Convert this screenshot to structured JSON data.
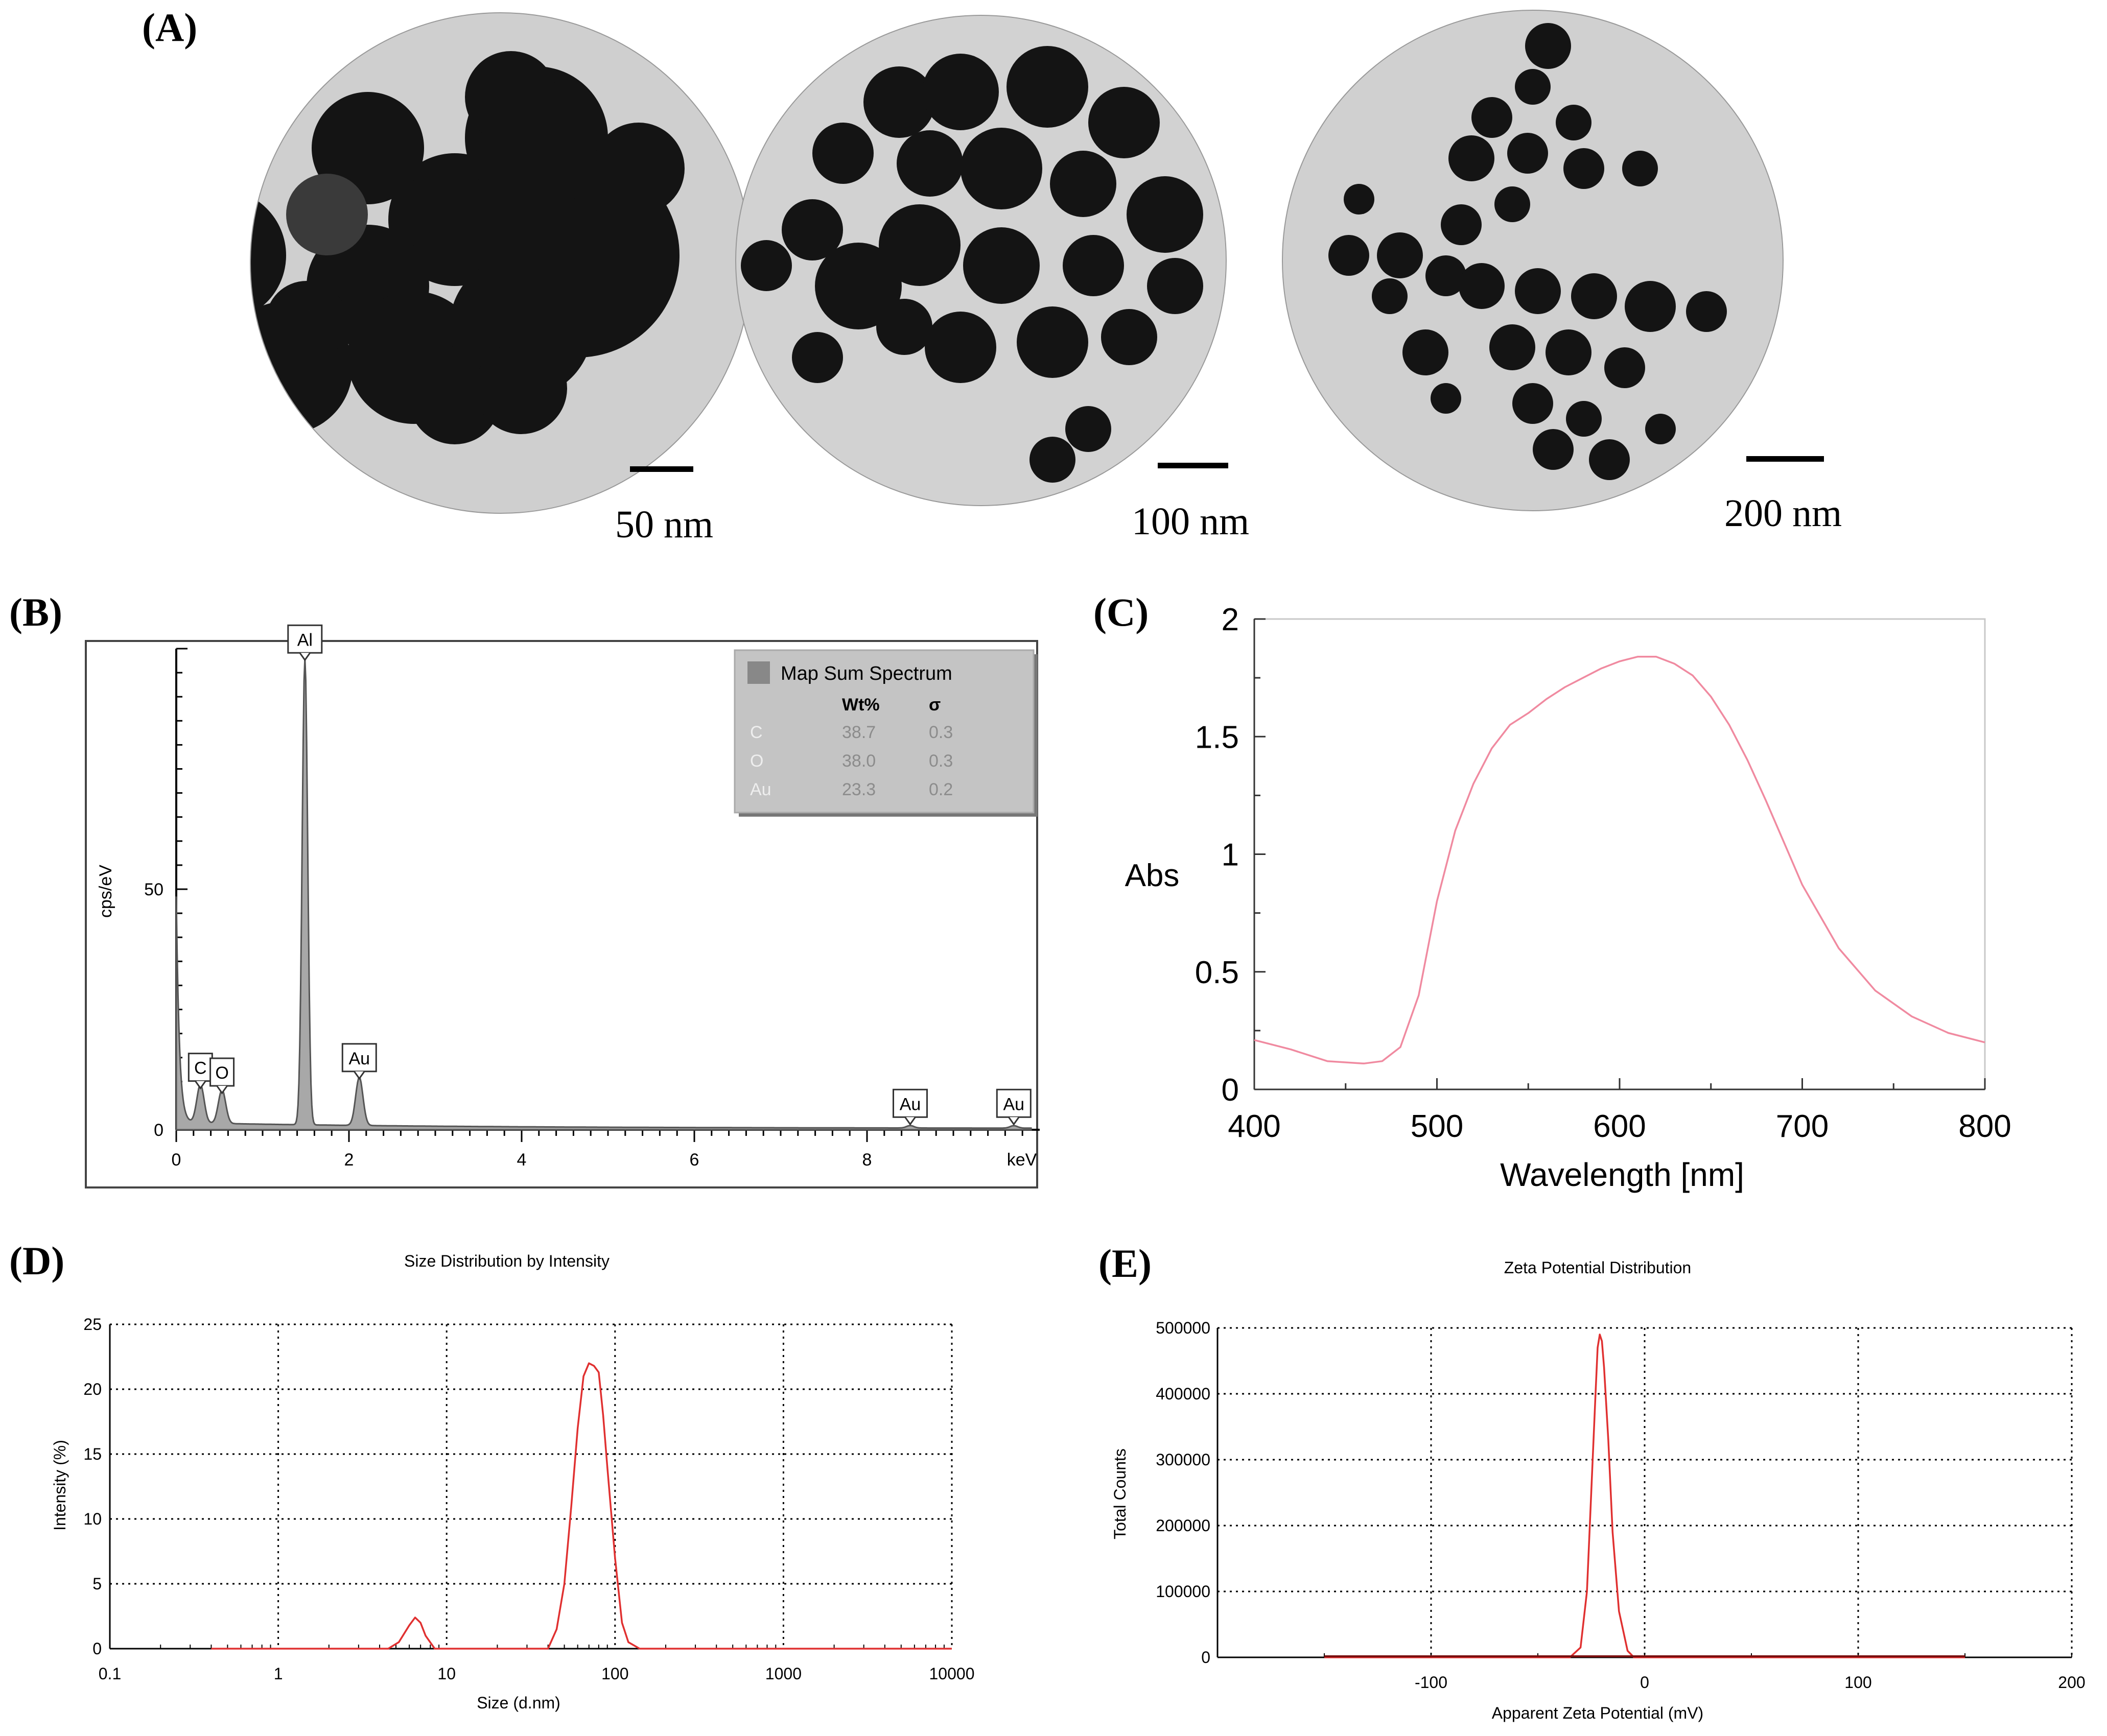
{
  "panel_labels": {
    "a": "(A)",
    "b": "(B)",
    "c": "(C)",
    "d": "(D)",
    "e": "(E)"
  },
  "tem_images": [
    {
      "scale": "50 nm",
      "particle_density": "large aggregates"
    },
    {
      "scale": "100 nm",
      "particle_density": "dense cluster"
    },
    {
      "scale": "200 nm",
      "particle_density": "sparse branching cluster"
    }
  ],
  "chart_data": [
    {
      "id": "B",
      "type": "area",
      "xlabel": "keV",
      "ylabel": "cps/eV",
      "xlim": [
        0,
        10
      ],
      "ylim": [
        0,
        100
      ],
      "x_ticks": [
        "0",
        "2",
        "4",
        "6",
        "8"
      ],
      "y_ticks": [
        "0",
        "50"
      ],
      "peaks": [
        {
          "label": "C",
          "x": 0.28,
          "y": 8
        },
        {
          "label": "O",
          "x": 0.53,
          "y": 7
        },
        {
          "label": "Al",
          "x": 1.49,
          "y": 97
        },
        {
          "label": "Au",
          "x": 2.12,
          "y": 10
        },
        {
          "label": "Au",
          "x": 8.5,
          "y": 0.5
        },
        {
          "label": "Au",
          "x": 9.7,
          "y": 0.5
        }
      ],
      "legend": {
        "title": "Map Sum Spectrum",
        "col_wt": "Wt%",
        "col_sigma": "σ",
        "rows": [
          {
            "el": "C",
            "wt": "38.7",
            "sigma": "0.3"
          },
          {
            "el": "O",
            "wt": "38.0",
            "sigma": "0.3"
          },
          {
            "el": "Au",
            "wt": "23.3",
            "sigma": "0.2"
          }
        ]
      },
      "colors": {
        "fill": "#a8a8a8",
        "line": "#555555"
      }
    },
    {
      "id": "C",
      "type": "line",
      "xlabel": "Wavelength [nm]",
      "ylabel": "Abs",
      "xlim": [
        400,
        800
      ],
      "ylim": [
        0,
        2
      ],
      "x_ticks": [
        "400",
        "500",
        "600",
        "700",
        "800"
      ],
      "y_ticks": [
        "0",
        "0.5",
        "1",
        "1.5",
        "2"
      ],
      "x": [
        400,
        420,
        440,
        460,
        470,
        480,
        490,
        500,
        510,
        520,
        530,
        540,
        550,
        560,
        570,
        580,
        590,
        600,
        610,
        620,
        630,
        640,
        650,
        660,
        670,
        680,
        690,
        700,
        720,
        740,
        760,
        780,
        800
      ],
      "y": [
        0.21,
        0.17,
        0.12,
        0.11,
        0.12,
        0.18,
        0.4,
        0.8,
        1.1,
        1.3,
        1.45,
        1.55,
        1.6,
        1.66,
        1.71,
        1.75,
        1.79,
        1.82,
        1.84,
        1.84,
        1.81,
        1.76,
        1.67,
        1.55,
        1.4,
        1.23,
        1.05,
        0.87,
        0.6,
        0.42,
        0.31,
        0.24,
        0.2
      ],
      "colors": {
        "line": "#f08aa0"
      }
    },
    {
      "id": "D",
      "type": "line",
      "title": "Size Distribution by Intensity",
      "xlabel": "Size (d.nm)",
      "ylabel": "Intensity (%)",
      "xscale": "log",
      "xlim": [
        0.1,
        10000
      ],
      "ylim": [
        0,
        25
      ],
      "x_ticks": [
        "0.1",
        "1",
        "10",
        "100",
        "1000",
        "10000"
      ],
      "y_ticks": [
        "0",
        "5",
        "10",
        "15",
        "20",
        "25"
      ],
      "x": [
        0.4,
        4.5,
        5.2,
        6.0,
        6.5,
        7.0,
        7.5,
        8.5,
        10,
        40,
        45,
        50,
        55,
        60,
        65,
        70,
        75,
        80,
        85,
        90,
        100,
        110,
        120,
        140,
        10000
      ],
      "y": [
        0,
        0,
        0.5,
        1.8,
        2.4,
        2.0,
        1.0,
        0,
        0,
        0,
        1.5,
        5,
        11,
        17,
        21,
        22,
        21.8,
        21.3,
        18,
        14,
        7,
        2,
        0.5,
        0,
        0
      ],
      "grid": true,
      "colors": {
        "line": "#e03030"
      }
    },
    {
      "id": "E",
      "type": "line",
      "title": "Zeta Potential Distribution",
      "xlabel": "Apparent Zeta Potential (mV)",
      "ylabel": "Total Counts",
      "xlim": [
        -200,
        200
      ],
      "ylim": [
        0,
        500000
      ],
      "x_ticks": [
        "-100",
        "0",
        "100",
        "200"
      ],
      "y_ticks": [
        "0",
        "100000",
        "200000",
        "300000",
        "400000",
        "500000"
      ],
      "x": [
        -150,
        -35,
        -30,
        -27,
        -25,
        -23,
        -22,
        -21,
        -20,
        -19,
        -17,
        -15,
        -12,
        -8,
        -5,
        150
      ],
      "y": [
        0,
        0,
        15000,
        100000,
        250000,
        400000,
        470000,
        490000,
        480000,
        440000,
        330000,
        190000,
        70000,
        10000,
        0,
        0
      ],
      "grid": true,
      "colors": {
        "line": "#e03030"
      }
    }
  ]
}
